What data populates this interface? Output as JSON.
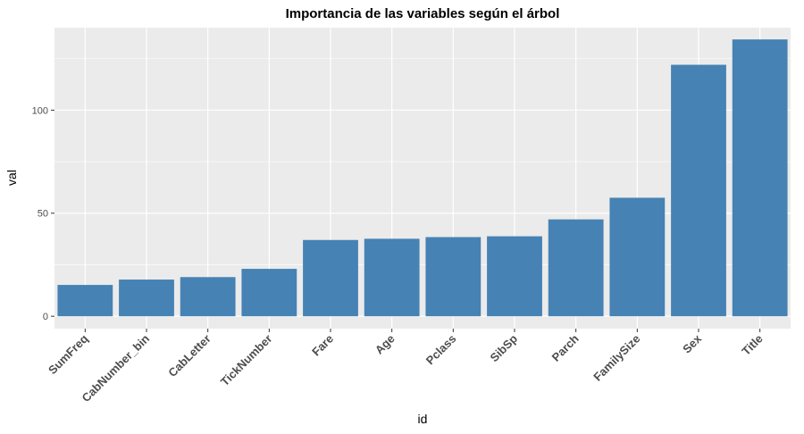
{
  "chart_data": {
    "type": "bar",
    "title": "Importancia de las variables según el árbol",
    "xlabel": "id",
    "ylabel": "val",
    "categories": [
      "SumFreq",
      "CabNumber_bin",
      "CabLetter",
      "TickNumber",
      "Fare",
      "Age",
      "Pclass",
      "SibSp",
      "Parch",
      "FamilySize",
      "Sex",
      "Title"
    ],
    "values": [
      15.2,
      17.8,
      19.0,
      23.0,
      37.0,
      37.6,
      38.4,
      38.8,
      47.0,
      57.5,
      122.0,
      134.3
    ],
    "ylim": [
      -6,
      140
    ],
    "yticks": [
      0,
      50,
      100
    ],
    "bar_color": "#4682b4",
    "panel_background": "#ebebeb",
    "grid": true,
    "legend": "none"
  }
}
